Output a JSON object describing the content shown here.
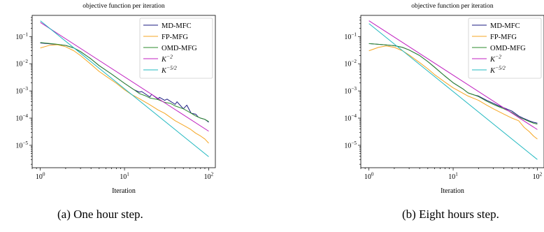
{
  "captions": [
    "(a) One hour step.",
    "(b) Eight hours step."
  ],
  "chart_data": [
    {
      "type": "line",
      "title": "objective function per iteration",
      "xlabel": "Iteration",
      "ylabel": "",
      "xscale": "log",
      "yscale": "log",
      "xlim": [
        0.8,
        120
      ],
      "ylim": [
        1.5e-06,
        0.6
      ],
      "xticks": [
        {
          "v": 1,
          "base": "10",
          "exp": "0"
        },
        {
          "v": 10,
          "base": "10",
          "exp": "1"
        },
        {
          "v": 100,
          "base": "10",
          "exp": "2"
        }
      ],
      "yticks": [
        {
          "v": 0.1,
          "base": "10",
          "exp": "−1"
        },
        {
          "v": 0.01,
          "base": "10",
          "exp": "−2"
        },
        {
          "v": 0.001,
          "base": "10",
          "exp": "−3"
        },
        {
          "v": 0.0001,
          "base": "10",
          "exp": "−4"
        },
        {
          "v": 1e-05,
          "base": "10",
          "exp": "−5"
        }
      ],
      "legend_position": "top-right",
      "series": [
        {
          "name": "MD-MFC",
          "color": "#1a1a80",
          "x": [
            1,
            1.5,
            2,
            2.5,
            3,
            4,
            5,
            7,
            10,
            13,
            15,
            16,
            20,
            21,
            25,
            26,
            30,
            32,
            40,
            42,
            50,
            55,
            60,
            62,
            70,
            75,
            80,
            85,
            90,
            95,
            100
          ],
          "y": [
            0.058,
            0.052,
            0.047,
            0.038,
            0.028,
            0.015,
            0.0085,
            0.0042,
            0.0019,
            0.0011,
            0.0009,
            0.00095,
            0.0006,
            0.00075,
            0.0005,
            0.00058,
            0.00045,
            0.0005,
            0.00032,
            0.0004,
            0.00022,
            0.0003,
            0.00018,
            0.00015,
            0.00014,
            0.00011,
            0.0001,
            9.5e-05,
            9e-05,
            8e-05,
            7e-05
          ]
        },
        {
          "name": "FP-MFG",
          "color": "#f5a623",
          "x": [
            1,
            1.3,
            1.6,
            2,
            2.5,
            3,
            4,
            5,
            6,
            8,
            10,
            12,
            15,
            20,
            25,
            30,
            40,
            50,
            60,
            70,
            80,
            90,
            100
          ],
          "y": [
            0.038,
            0.048,
            0.05,
            0.042,
            0.03,
            0.02,
            0.0095,
            0.0052,
            0.0035,
            0.0019,
            0.0011,
            0.00075,
            0.00052,
            0.00031,
            0.0002,
            0.00015,
            8e-05,
            5.5e-05,
            4e-05,
            2.8e-05,
            2.2e-05,
            1.7e-05,
            1.2e-05
          ]
        },
        {
          "name": "OMD-MFG",
          "color": "#2e8b2e",
          "x": [
            1,
            1.5,
            2,
            2.5,
            3,
            4,
            5,
            7,
            10,
            13,
            15,
            18,
            20,
            25,
            30,
            35,
            40,
            50,
            60,
            70,
            80,
            90,
            100
          ],
          "y": [
            0.06,
            0.053,
            0.047,
            0.038,
            0.028,
            0.015,
            0.0085,
            0.0042,
            0.0019,
            0.0011,
            0.0008,
            0.00065,
            0.00055,
            0.00048,
            0.00038,
            0.00035,
            0.00028,
            0.00022,
            0.00016,
            0.00012,
            0.0001,
            9e-05,
            7.5e-05
          ]
        },
        {
          "name": "K^{-2}",
          "color": "#c020c0",
          "label_base": "K",
          "label_exp": "−2",
          "x": [
            1,
            100
          ],
          "y": [
            0.33,
            3.3e-05
          ]
        },
        {
          "name": "K^{-5/2}",
          "color": "#20b8c0",
          "label_base": "K",
          "label_exp": "−5/2",
          "x": [
            1,
            100
          ],
          "y": [
            0.38,
            3.8e-06
          ]
        }
      ]
    },
    {
      "type": "line",
      "title": "objective function per iteration",
      "xlabel": "Iteration",
      "ylabel": "",
      "xscale": "log",
      "yscale": "log",
      "xlim": [
        0.8,
        120
      ],
      "ylim": [
        1.5e-06,
        0.6
      ],
      "xticks": [
        {
          "v": 1,
          "base": "10",
          "exp": "0"
        },
        {
          "v": 10,
          "base": "10",
          "exp": "1"
        },
        {
          "v": 100,
          "base": "10",
          "exp": "2"
        }
      ],
      "yticks": [
        {
          "v": 0.1,
          "base": "10",
          "exp": "−1"
        },
        {
          "v": 0.01,
          "base": "10",
          "exp": "−2"
        },
        {
          "v": 0.001,
          "base": "10",
          "exp": "−3"
        },
        {
          "v": 0.0001,
          "base": "10",
          "exp": "−4"
        },
        {
          "v": 1e-05,
          "base": "10",
          "exp": "−5"
        }
      ],
      "legend_position": "top-right",
      "series": [
        {
          "name": "MD-MFC",
          "color": "#1a1a80",
          "x": [
            1,
            1.5,
            2,
            2.5,
            3,
            4,
            5,
            6,
            8,
            10,
            13,
            15,
            18,
            20,
            25,
            30,
            35,
            40,
            50,
            60,
            70,
            80,
            90,
            100
          ],
          "y": [
            0.055,
            0.05,
            0.046,
            0.04,
            0.032,
            0.02,
            0.012,
            0.0075,
            0.0035,
            0.002,
            0.0012,
            0.00085,
            0.0007,
            0.00065,
            0.00045,
            0.00035,
            0.00028,
            0.00024,
            0.00018,
            0.00012,
            9.5e-05,
            8e-05,
            7e-05,
            6.5e-05
          ]
        },
        {
          "name": "FP-MFG",
          "color": "#f5a623",
          "x": [
            1,
            1.3,
            1.6,
            2,
            2.5,
            3,
            4,
            5,
            6,
            8,
            10,
            12,
            15,
            20,
            25,
            30,
            40,
            50,
            60,
            70,
            80,
            90,
            100
          ],
          "y": [
            0.03,
            0.04,
            0.045,
            0.04,
            0.03,
            0.021,
            0.011,
            0.0065,
            0.004,
            0.0021,
            0.0013,
            0.00095,
            0.00065,
            0.00045,
            0.0003,
            0.00022,
            0.00014,
            0.0001,
            8e-05,
            4.5e-05,
            3.2e-05,
            2.2e-05,
            1.7e-05
          ]
        },
        {
          "name": "OMD-MFG",
          "color": "#2e8b2e",
          "x": [
            1,
            1.5,
            2,
            2.5,
            3,
            4,
            5,
            6,
            8,
            10,
            13,
            15,
            18,
            20,
            25,
            30,
            35,
            40,
            50,
            60,
            70,
            80,
            90,
            100
          ],
          "y": [
            0.055,
            0.05,
            0.046,
            0.04,
            0.032,
            0.02,
            0.012,
            0.0075,
            0.0035,
            0.002,
            0.0012,
            0.00085,
            0.0007,
            0.00062,
            0.00042,
            0.00032,
            0.00026,
            0.00022,
            0.00016,
            0.00011,
            9e-05,
            7.5e-05,
            6.5e-05,
            6e-05
          ]
        },
        {
          "name": "K^{-2}",
          "color": "#c020c0",
          "label_base": "K",
          "label_exp": "−2",
          "x": [
            1,
            100
          ],
          "y": [
            0.38,
            3.8e-05
          ]
        },
        {
          "name": "K^{-5/2}",
          "color": "#20b8c0",
          "label_base": "K",
          "label_exp": "−5/2",
          "x": [
            1,
            100
          ],
          "y": [
            0.3,
            3e-06
          ]
        }
      ]
    }
  ]
}
